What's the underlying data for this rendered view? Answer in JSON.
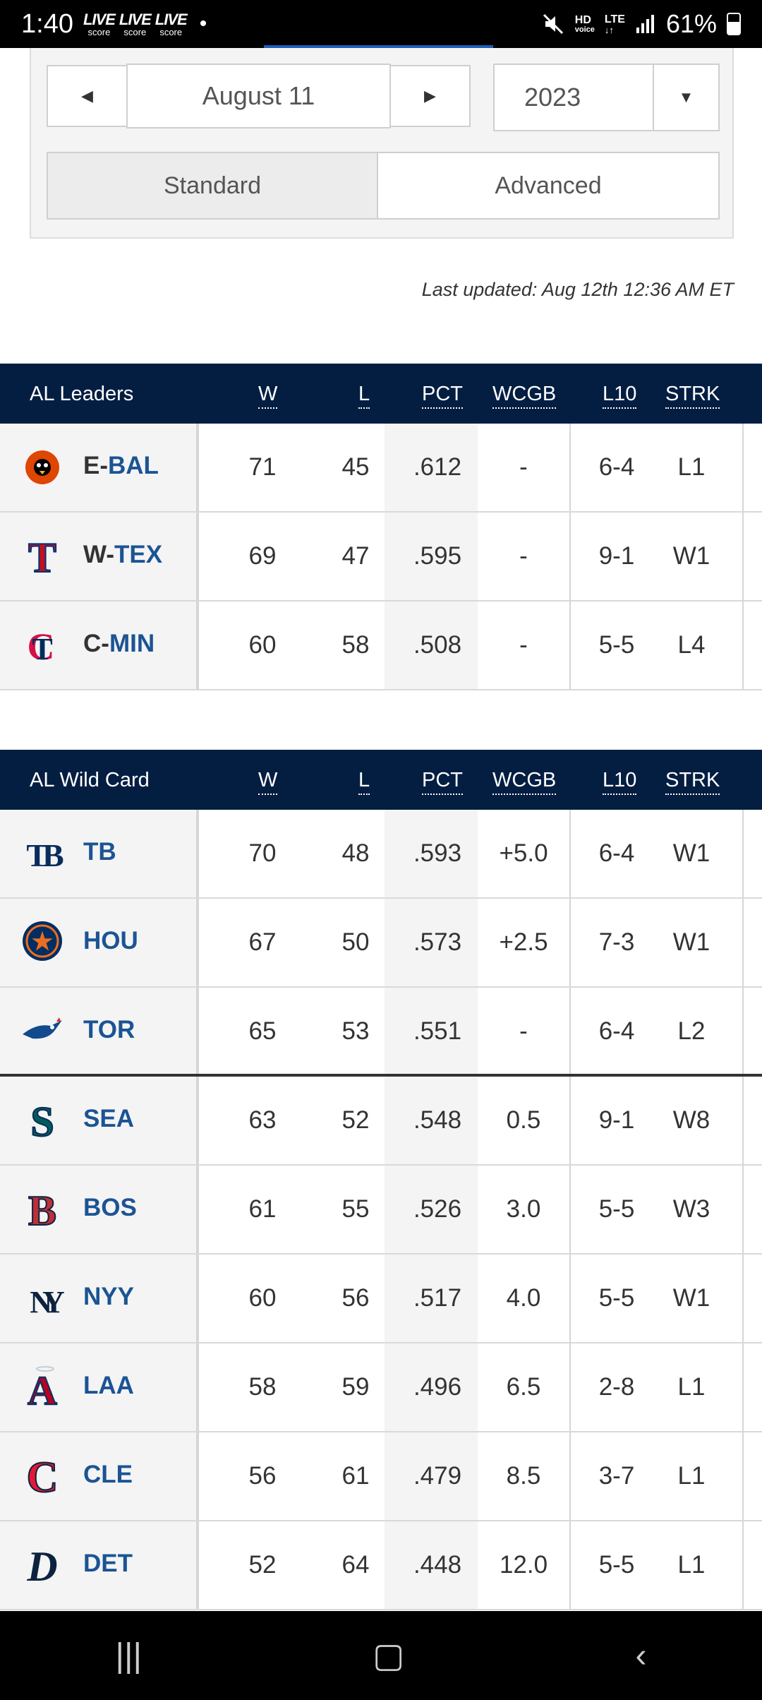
{
  "status_bar": {
    "time": "1:40",
    "live_top": "LIVE",
    "live_bottom": "score",
    "right_hd": "HD",
    "right_voice": "voice",
    "right_lte": "LTE",
    "battery": "61%",
    "battery_level": 0.61
  },
  "controls": {
    "date": "August 11",
    "year": "2023",
    "tabs": [
      "Standard",
      "Advanced"
    ],
    "active_tab": "Standard"
  },
  "last_updated": "Last updated: Aug 12th 12:36 AM ET",
  "columns": [
    "W",
    "L",
    "PCT",
    "WCGB",
    "L10",
    "STRK"
  ],
  "leaders": {
    "title": "AL Leaders",
    "rows": [
      {
        "div": "E-",
        "team": "BAL",
        "logo": "orioles-bird-icon",
        "w": "71",
        "l": "45",
        "pct": ".612",
        "wcgb": "-",
        "l10": "6-4",
        "strk": "L1"
      },
      {
        "div": "W-",
        "team": "TEX",
        "logo": "rangers-t-icon",
        "w": "69",
        "l": "47",
        "pct": ".595",
        "wcgb": "-",
        "l10": "9-1",
        "strk": "W1"
      },
      {
        "div": "C-",
        "team": "MIN",
        "logo": "twins-tc-icon",
        "w": "60",
        "l": "58",
        "pct": ".508",
        "wcgb": "-",
        "l10": "5-5",
        "strk": "L4"
      }
    ]
  },
  "wildcard": {
    "title": "AL Wild Card",
    "rows": [
      {
        "team": "TB",
        "logo": "rays-tb-icon",
        "w": "70",
        "l": "48",
        "pct": ".593",
        "wcgb": "+5.0",
        "l10": "6-4",
        "strk": "W1"
      },
      {
        "team": "HOU",
        "logo": "astros-star-icon",
        "w": "67",
        "l": "50",
        "pct": ".573",
        "wcgb": "+2.5",
        "l10": "7-3",
        "strk": "W1"
      },
      {
        "team": "TOR",
        "logo": "bluejays-bird-icon",
        "w": "65",
        "l": "53",
        "pct": ".551",
        "wcgb": "-",
        "l10": "6-4",
        "strk": "L2"
      },
      {
        "team": "SEA",
        "logo": "mariners-s-icon",
        "w": "63",
        "l": "52",
        "pct": ".548",
        "wcgb": "0.5",
        "l10": "9-1",
        "strk": "W8"
      },
      {
        "team": "BOS",
        "logo": "redsox-b-icon",
        "w": "61",
        "l": "55",
        "pct": ".526",
        "wcgb": "3.0",
        "l10": "5-5",
        "strk": "W3"
      },
      {
        "team": "NYY",
        "logo": "yankees-ny-icon",
        "w": "60",
        "l": "56",
        "pct": ".517",
        "wcgb": "4.0",
        "l10": "5-5",
        "strk": "W1"
      },
      {
        "team": "LAA",
        "logo": "angels-a-icon",
        "w": "58",
        "l": "59",
        "pct": ".496",
        "wcgb": "6.5",
        "l10": "2-8",
        "strk": "L1"
      },
      {
        "team": "CLE",
        "logo": "guardians-c-icon",
        "w": "56",
        "l": "61",
        "pct": ".479",
        "wcgb": "8.5",
        "l10": "3-7",
        "strk": "L1"
      },
      {
        "team": "DET",
        "logo": "tigers-d-icon",
        "w": "52",
        "l": "64",
        "pct": ".448",
        "wcgb": "12.0",
        "l10": "5-5",
        "strk": "L1"
      }
    ]
  },
  "colors": {
    "header_bg": "#041e42",
    "team_link": "#1b5494",
    "accent": "#1b5eb6"
  }
}
